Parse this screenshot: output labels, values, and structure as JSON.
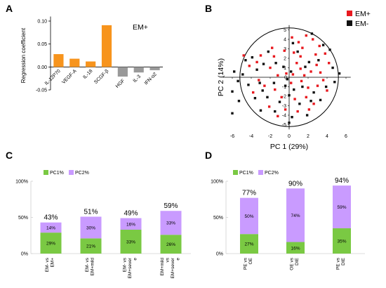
{
  "chart_data": [
    {
      "panel": "A",
      "type": "bar",
      "annotation": "EM+",
      "ylabel": "Regression coefficient",
      "categories": [
        "IL-12P70",
        "VEGF-A",
        "IL-18",
        "SCGF-β",
        "HGF",
        "IL-3",
        "IFN-α2"
      ],
      "values": [
        0.028,
        0.018,
        0.012,
        0.091,
        -0.021,
        -0.012,
        -0.007
      ],
      "colors": [
        "#f7941d",
        "#f7941d",
        "#f7941d",
        "#f7941d",
        "#999999",
        "#999999",
        "#999999"
      ],
      "ylim": [
        -0.05,
        0.1
      ],
      "yticks": [
        -0.05,
        0.0,
        0.05,
        0.1
      ],
      "ytick_labels": [
        "-0.05",
        "0.00",
        "0.05",
        "0.10"
      ]
    },
    {
      "panel": "B",
      "type": "scatter",
      "xlabel": "PC 1 (29%)",
      "ylabel": "PC 2 (14%)",
      "xlim": [
        -7,
        6.5
      ],
      "ylim": [
        -5.5,
        5.5
      ],
      "xticks": [
        -6,
        -4,
        -2,
        0,
        2,
        4,
        6
      ],
      "yticks": [
        -5,
        -4,
        -3,
        -2,
        -1,
        0,
        1,
        2,
        3,
        4,
        5
      ],
      "circle_radius": 5.2,
      "legend": {
        "position": "top-right"
      },
      "series": [
        {
          "name": "EM+",
          "color": "#e8191f",
          "points": [
            [
              -4.8,
              2.3
            ],
            [
              -4.2,
              1.2
            ],
            [
              -3.0,
              2.3
            ],
            [
              -1.8,
              3.1
            ],
            [
              -0.5,
              2.8
            ],
            [
              0.3,
              4.2
            ],
            [
              1.0,
              3.7
            ],
            [
              1.8,
              4.4
            ],
            [
              2.5,
              4.0
            ],
            [
              3.2,
              3.3
            ],
            [
              3.8,
              2.5
            ],
            [
              4.2,
              1.5
            ],
            [
              1.2,
              2.2
            ],
            [
              0.8,
              1.5
            ],
            [
              2.8,
              2.4
            ],
            [
              -0.3,
              0.4
            ],
            [
              0.4,
              0.3
            ],
            [
              1.2,
              0.9
            ],
            [
              2.3,
              0.6
            ],
            [
              3.3,
              0.5
            ],
            [
              -2.0,
              1.0
            ],
            [
              -1.2,
              0.2
            ],
            [
              -3.2,
              -0.3
            ],
            [
              -2.6,
              -0.9
            ],
            [
              -1.5,
              -1.3
            ],
            [
              0.2,
              -0.6
            ],
            [
              1.3,
              -0.4
            ],
            [
              2.0,
              -1.1
            ],
            [
              3.0,
              -0.9
            ],
            [
              4.0,
              -1.4
            ],
            [
              -0.8,
              -2.1
            ],
            [
              0.6,
              -2.3
            ],
            [
              1.8,
              -2.1
            ],
            [
              2.6,
              -2.8
            ],
            [
              -3.8,
              -1.6
            ],
            [
              -2.1,
              -3.1
            ],
            [
              -0.4,
              -3.4
            ],
            [
              0.9,
              -3.6
            ],
            [
              2.1,
              -3.4
            ],
            [
              -1.2,
              -4.1
            ],
            [
              1.6,
              0.2
            ],
            [
              2.9,
              1.3
            ],
            [
              -1.6,
              2.2
            ],
            [
              0.5,
              2.6
            ],
            [
              3.6,
              -0.3
            ],
            [
              -3.4,
              1.6
            ],
            [
              1.4,
              3.1
            ]
          ]
        },
        {
          "name": "EM-",
          "color": "#111111",
          "points": [
            [
              -5.8,
              0.6
            ],
            [
              -5.4,
              -0.4
            ],
            [
              -6.0,
              -1.5
            ],
            [
              -5.3,
              -2.5
            ],
            [
              -6.0,
              -3.8
            ],
            [
              -4.6,
              1.8
            ],
            [
              -3.9,
              2.1
            ],
            [
              -3.4,
              0.8
            ],
            [
              -2.7,
              1.4
            ],
            [
              -1.4,
              1.5
            ],
            [
              -0.6,
              1.1
            ],
            [
              0.2,
              0.6
            ],
            [
              0.9,
              2.7
            ],
            [
              2.1,
              1.6
            ],
            [
              3.1,
              1.8
            ],
            [
              3.6,
              3.4
            ],
            [
              4.6,
              1.0
            ],
            [
              5.3,
              0.4
            ],
            [
              4.8,
              -0.5
            ],
            [
              3.9,
              -1.0
            ],
            [
              2.6,
              -1.6
            ],
            [
              1.4,
              -1.0
            ],
            [
              0.5,
              -1.3
            ],
            [
              -0.4,
              -0.9
            ],
            [
              -1.6,
              -0.6
            ],
            [
              -2.8,
              -1.4
            ],
            [
              -3.6,
              -2.2
            ],
            [
              -4.3,
              -0.8
            ],
            [
              -2.3,
              -2.1
            ],
            [
              -1.0,
              -2.6
            ],
            [
              0.0,
              -1.9
            ],
            [
              1.1,
              -2.8
            ],
            [
              2.3,
              -2.5
            ],
            [
              3.3,
              -2.4
            ],
            [
              -3.0,
              -3.5
            ],
            [
              -1.5,
              -3.6
            ],
            [
              0.3,
              -4.2
            ],
            [
              1.9,
              -4.0
            ],
            [
              0.0,
              -4.8
            ],
            [
              -4.9,
              0.3
            ],
            [
              2.4,
              4.6
            ],
            [
              0.4,
              3.6
            ],
            [
              -2.2,
              2.7
            ],
            [
              4.3,
              2.9
            ],
            [
              -0.2,
              -0.2
            ],
            [
              1.7,
              1.1
            ],
            [
              -3.1,
              -0.6
            ]
          ]
        }
      ]
    },
    {
      "panel": "C",
      "type": "bar",
      "stacked": true,
      "legend": [
        "PC1%",
        "PC2%"
      ],
      "colors": {
        "PC1%": "#7ac943",
        "PC2%": "#c99bff"
      },
      "categories": [
        [
          "EM- vs",
          "EM+"
        ],
        [
          "EM- vs",
          "EM+mild"
        ],
        [
          "EM- vs",
          "EM+sever",
          "e"
        ],
        [
          "EM+mild",
          "vs",
          "EM+sever",
          "e"
        ]
      ],
      "series": [
        {
          "name": "PC1%",
          "values": [
            29,
            21,
            33,
            26
          ],
          "labels": [
            "29%",
            "21%",
            "33%",
            "26%"
          ]
        },
        {
          "name": "PC2%",
          "values": [
            14,
            30,
            16,
            33
          ],
          "labels": [
            "14%",
            "30%",
            "16%",
            "33%"
          ]
        }
      ],
      "totals": [
        "43%",
        "51%",
        "49%",
        "59%"
      ],
      "ylim": [
        0,
        100
      ],
      "yticks": [
        0,
        50,
        100
      ],
      "ytick_labels": [
        "0%",
        "50%",
        "100%"
      ]
    },
    {
      "panel": "D",
      "type": "bar",
      "stacked": true,
      "legend": [
        "PC1%",
        "PC2%"
      ],
      "colors": {
        "PC1%": "#7ac943",
        "PC2%": "#c99bff"
      },
      "categories": [
        [
          "PE vs",
          "OE"
        ],
        [
          "OE vs",
          "DIE"
        ],
        [
          "PE vs",
          "DIE"
        ]
      ],
      "series": [
        {
          "name": "PC1%",
          "values": [
            27,
            16,
            35
          ],
          "labels": [
            "27%",
            "16%",
            "35%"
          ]
        },
        {
          "name": "PC2%",
          "values": [
            50,
            74,
            59
          ],
          "labels": [
            "50%",
            "74%",
            "59%"
          ]
        }
      ],
      "totals": [
        "77%",
        "90%",
        "94%"
      ],
      "ylim": [
        0,
        100
      ],
      "yticks": [
        0,
        50,
        100
      ],
      "ytick_labels": [
        "0%",
        "50%",
        "100%"
      ]
    }
  ]
}
